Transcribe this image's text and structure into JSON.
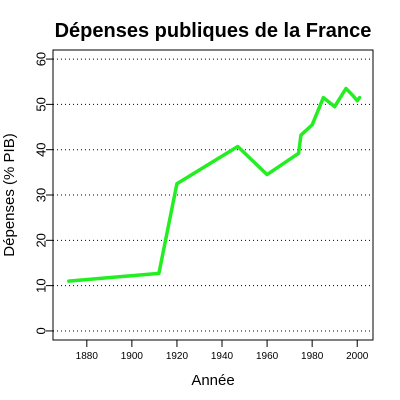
{
  "chart_data": {
    "type": "line",
    "title": "Dépenses publiques de la France",
    "xlabel": "Année",
    "ylabel": "Dépenses (% PIB)",
    "xlim": [
      1865,
      2007
    ],
    "ylim": [
      -2,
      62
    ],
    "x_ticks": [
      1880,
      1900,
      1920,
      1940,
      1960,
      1980,
      2000
    ],
    "y_ticks": [
      0,
      10,
      20,
      30,
      40,
      50,
      60
    ],
    "grid": "horizontal dotted",
    "line_color": "#22ee22",
    "series": [
      {
        "x": [
          1872,
          1912,
          1920,
          1947,
          1960,
          1974,
          1975,
          1980,
          1985,
          1990,
          1995,
          1998,
          2000,
          2001
        ],
        "y": [
          11,
          12.7,
          32.5,
          40.7,
          34.5,
          39.2,
          43.2,
          45.5,
          51.5,
          49.5,
          53.5,
          52,
          50.8,
          51.5
        ]
      }
    ]
  }
}
